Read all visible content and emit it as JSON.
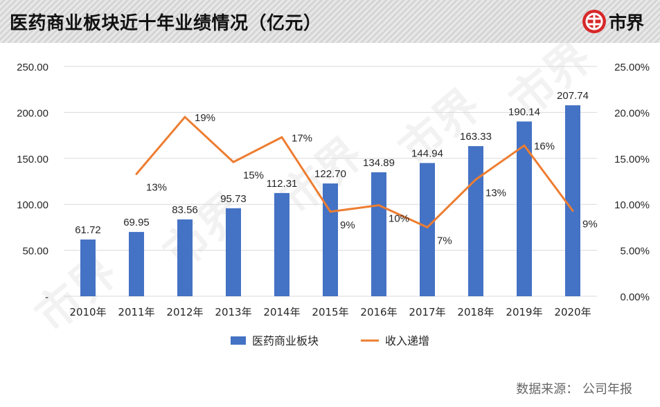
{
  "page": {
    "title": "医药商业板块近十年业绩情况（亿元）",
    "logo_text": "市界",
    "watermark": "市界",
    "source": "数据来源：  公司年报"
  },
  "colors": {
    "bar": "#4472C4",
    "line": "#ED7D31",
    "grid": "#d9d9d9",
    "text": "#262626",
    "logo_red": "#D7282A"
  },
  "chart_data": {
    "type": "bar+line",
    "categories": [
      "2010年",
      "2011年",
      "2012年",
      "2013年",
      "2014年",
      "2015年",
      "2016年",
      "2017年",
      "2018年",
      "2019年",
      "2020年"
    ],
    "series": [
      {
        "name": "医药商业板块",
        "type": "bar",
        "axis": "left",
        "values": [
          61.72,
          69.95,
          83.56,
          95.73,
          112.31,
          122.7,
          134.89,
          144.94,
          163.33,
          190.14,
          207.74
        ],
        "labels": [
          "61.72",
          "69.95",
          "83.56",
          "95.73",
          "112.31",
          "122.70",
          "134.89",
          "144.94",
          "163.33",
          "190.14",
          "207.74"
        ]
      },
      {
        "name": "收入递增",
        "type": "line",
        "axis": "right",
        "values": [
          null,
          13.3,
          19.5,
          14.6,
          17.3,
          9.2,
          9.9,
          7.5,
          12.7,
          16.4,
          9.3
        ],
        "labels": [
          null,
          "13%",
          "19%",
          "15%",
          "17%",
          "9%",
          "10%",
          "7%",
          "13%",
          "16%",
          "9%"
        ]
      }
    ],
    "y_left": {
      "range": [
        0,
        250
      ],
      "ticks": [
        0,
        50,
        100,
        150,
        200,
        250
      ],
      "tick_labels": [
        "-",
        "50.00",
        "100.00",
        "150.00",
        "200.00",
        "250.00"
      ]
    },
    "y_right": {
      "range": [
        0,
        25
      ],
      "ticks": [
        0,
        5,
        10,
        15,
        20,
        25
      ],
      "tick_labels": [
        "0.00%",
        "5.00%",
        "10.00%",
        "15.00%",
        "20.00%",
        "25.00%"
      ]
    },
    "grid": true,
    "legend": "bottom"
  }
}
